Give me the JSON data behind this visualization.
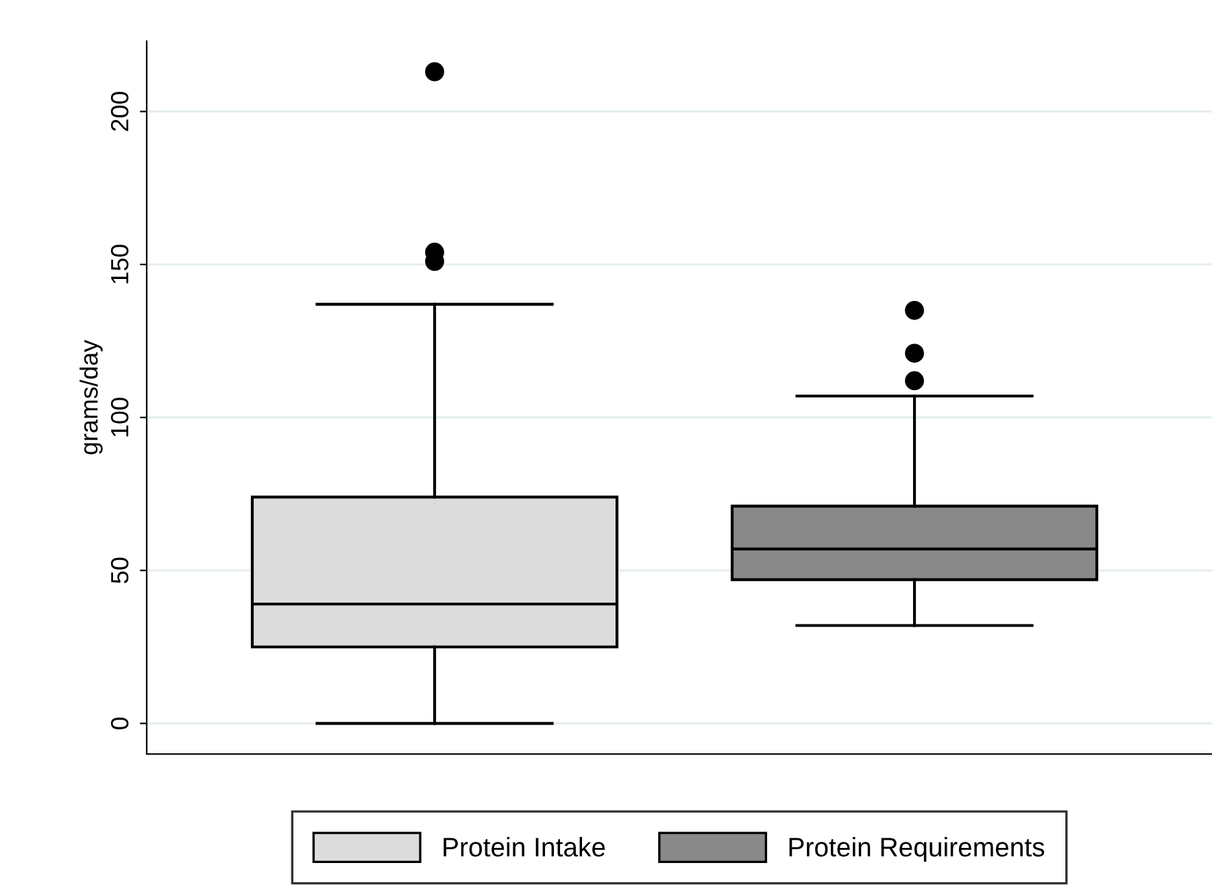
{
  "chart_data": {
    "type": "box",
    "ylabel": "grams/day",
    "ylim": [
      -10,
      223
    ],
    "yticks": [
      0,
      50,
      100,
      150,
      200
    ],
    "grid": "y",
    "legend": "bottom",
    "tick_labels": "y",
    "categories": [
      null
    ],
    "series": [
      {
        "name": "Protein Intake",
        "color": "#dcdcdc",
        "boxes": [
          {
            "low": 0,
            "q1": 25,
            "median": 39,
            "q3": 74,
            "high": 137,
            "outliers": [
              151,
              154,
              213
            ]
          }
        ]
      },
      {
        "name": "Protein Requirements",
        "color": "#898989",
        "boxes": [
          {
            "low": 32,
            "q1": 47,
            "median": 57,
            "q3": 71,
            "high": 107,
            "outliers": [
              112,
              121,
              135
            ]
          }
        ]
      }
    ]
  }
}
